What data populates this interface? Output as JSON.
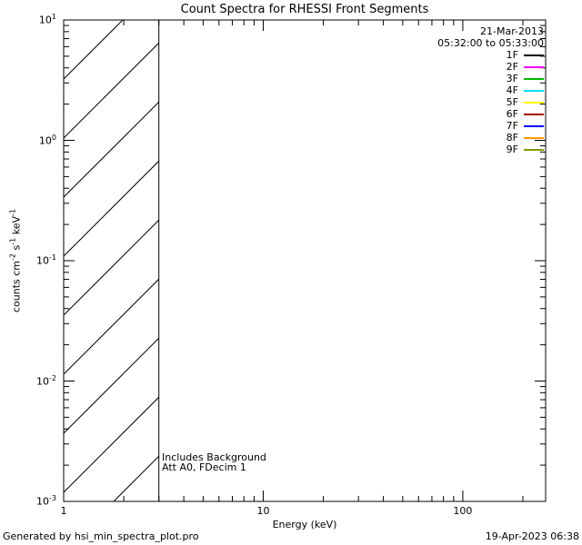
{
  "chart_data": {
    "type": "line",
    "title": "Count Spectra for RHESSI Front Segments",
    "xlabel": "Energy (keV)",
    "ylabel": {
      "segments": [
        {
          "text": "counts cm",
          "sup": "-2"
        },
        {
          "text": " s",
          "sup": "-1"
        },
        {
          "text": " keV",
          "sup": "-1"
        }
      ]
    },
    "x_axis": {
      "scale": "log",
      "min": 1,
      "max": 260,
      "major_ticks": [
        1,
        10,
        100
      ],
      "tick_labels": [
        "1",
        "10",
        "100"
      ]
    },
    "y_axis": {
      "scale": "log",
      "min": 0.001,
      "max": 10,
      "tick_exponents": [
        1,
        0,
        -1,
        -2,
        -3
      ]
    },
    "series": [],
    "hatched_region": {
      "x_min": 1,
      "x_max": 3
    },
    "annotations": [
      "Includes Background",
      "Att A0, FDecim 1"
    ],
    "legend": {
      "date": "21-Mar-2013",
      "time_range": "05:32:00 to 05:33:00",
      "entries": [
        {
          "label": "1F",
          "color": "#000000"
        },
        {
          "label": "2F",
          "color": "#ff00ff"
        },
        {
          "label": "3F",
          "color": "#00bb00"
        },
        {
          "label": "4F",
          "color": "#00e0ff"
        },
        {
          "label": "5F",
          "color": "#ffff00"
        },
        {
          "label": "6F",
          "color": "#aa0000"
        },
        {
          "label": "7F",
          "color": "#0000ff"
        },
        {
          "label": "8F",
          "color": "#ff9900"
        },
        {
          "label": "9F",
          "color": "#889900"
        }
      ]
    }
  },
  "footer": {
    "left": "Generated by hsi_min_spectra_plot.pro",
    "right": "19-Apr-2023 06:38"
  }
}
